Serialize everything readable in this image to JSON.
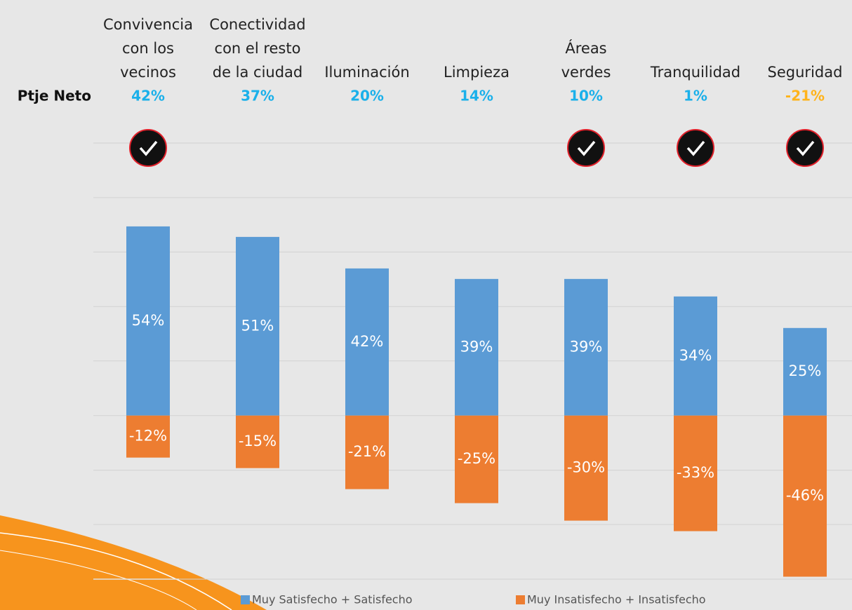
{
  "chart_data": {
    "type": "bar",
    "categories": [
      "Convivencia con los vecinos",
      "Conectividad con el resto de la ciudad",
      "Iluminación",
      "Limpieza",
      "Áreas verdes",
      "Tranquilidad",
      "Seguridad"
    ],
    "net": {
      "label": "Ptje Neto",
      "values": [
        42,
        37,
        20,
        14,
        10,
        1,
        -21
      ],
      "value_labels": [
        "42%",
        "37%",
        "20%",
        "14%",
        "10%",
        "1%",
        "-21%"
      ],
      "colors": [
        "#1ab0ea",
        "#1ab0ea",
        "#1ab0ea",
        "#1ab0ea",
        "#1ab0ea",
        "#1ab0ea",
        "#ffb31a"
      ]
    },
    "series": [
      {
        "name": "Muy Satisfecho + Satisfecho",
        "color": "#5b9bd5",
        "values": [
          54,
          51,
          42,
          39,
          39,
          34,
          25
        ],
        "value_labels": [
          "54%",
          "51%",
          "42%",
          "39%",
          "39%",
          "34%",
          "25%"
        ]
      },
      {
        "name": "Muy Insatisfecho + Insatisfecho",
        "color": "#ed7d31",
        "values": [
          -12,
          -15,
          -21,
          -25,
          -30,
          -33,
          -46
        ],
        "value_labels": [
          "-12%",
          "-15%",
          "-21%",
          "-25%",
          "-30%",
          "-33%",
          "-46%"
        ]
      }
    ],
    "ylim": [
      -46.7,
      77.8
    ],
    "yticks": [
      -46.7,
      -31.1,
      -15.6,
      0,
      15.6,
      31.1,
      46.7,
      62.2,
      77.8
    ],
    "grid": true
  }
}
